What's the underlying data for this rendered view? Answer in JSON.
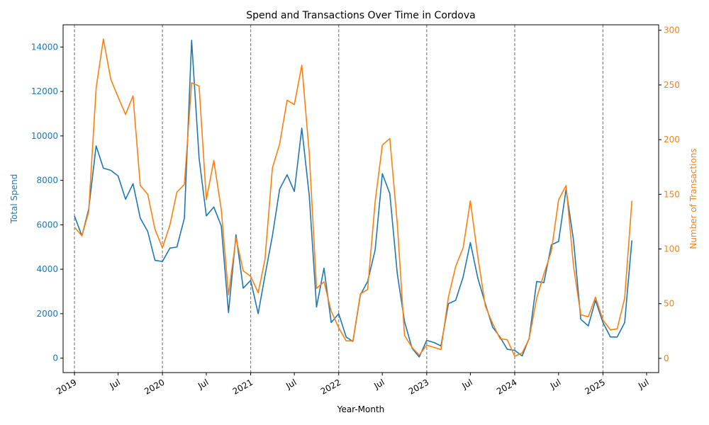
{
  "chart_data": {
    "type": "line",
    "title": "Spend and Transactions Over Time in Cordova",
    "xlabel": "Year-Month",
    "ylabel_left": "Total Spend",
    "ylabel_right": "Number of Transactions",
    "colors": {
      "spend": "#1f77b4",
      "transactions": "#ff7f0e",
      "year_line": "#808080"
    },
    "xlim": [
      "2018-11-15",
      "2025-08-20"
    ],
    "ylim_left": [
      -650,
      15000
    ],
    "ylim_right": [
      -13,
      305
    ],
    "y_ticks_left": [
      "0",
      "2000",
      "4000",
      "6000",
      "8000",
      "10000",
      "12000",
      "14000"
    ],
    "y_ticks_right": [
      "0",
      "50",
      "100",
      "150",
      "200",
      "250",
      "300"
    ],
    "x_ticks": [
      {
        "date": "2019-01-01",
        "label": "2019"
      },
      {
        "date": "2019-07-01",
        "label": "Jul"
      },
      {
        "date": "2020-01-01",
        "label": "2020"
      },
      {
        "date": "2020-07-01",
        "label": "Jul"
      },
      {
        "date": "2021-01-01",
        "label": "2021"
      },
      {
        "date": "2021-07-01",
        "label": "Jul"
      },
      {
        "date": "2022-01-01",
        "label": "2022"
      },
      {
        "date": "2022-07-01",
        "label": "Jul"
      },
      {
        "date": "2023-01-01",
        "label": "2023"
      },
      {
        "date": "2023-07-01",
        "label": "Jul"
      },
      {
        "date": "2024-01-01",
        "label": "2024"
      },
      {
        "date": "2024-07-01",
        "label": "Jul"
      },
      {
        "date": "2025-01-01",
        "label": "2025"
      },
      {
        "date": "2025-07-01",
        "label": "Jul"
      }
    ],
    "year_lines": [
      "2019-01-01",
      "2020-01-01",
      "2021-01-01",
      "2022-01-01",
      "2023-01-01",
      "2024-01-01",
      "2025-01-01"
    ],
    "x": [
      "2019-01",
      "2019-02",
      "2019-03",
      "2019-04",
      "2019-05",
      "2019-06",
      "2019-07",
      "2019-08",
      "2019-09",
      "2019-10",
      "2019-11",
      "2019-12",
      "2020-01",
      "2020-02",
      "2020-03",
      "2020-04",
      "2020-05",
      "2020-06",
      "2020-07",
      "2020-08",
      "2020-09",
      "2020-10",
      "2020-11",
      "2020-12",
      "2021-01",
      "2021-02",
      "2021-03",
      "2021-04",
      "2021-05",
      "2021-06",
      "2021-07",
      "2021-08",
      "2021-09",
      "2021-10",
      "2021-11",
      "2021-12",
      "2022-01",
      "2022-02",
      "2022-03",
      "2022-04",
      "2022-05",
      "2022-06",
      "2022-07",
      "2022-08",
      "2022-09",
      "2022-10",
      "2022-11",
      "2022-12",
      "2023-01",
      "2023-02",
      "2023-03",
      "2023-04",
      "2023-05",
      "2023-06",
      "2023-07",
      "2023-08",
      "2023-09",
      "2023-10",
      "2023-11",
      "2023-12",
      "2024-01",
      "2024-02",
      "2024-03",
      "2024-04",
      "2024-05",
      "2024-06",
      "2024-07",
      "2024-08",
      "2024-09",
      "2024-10",
      "2024-11",
      "2024-12",
      "2025-01",
      "2025-02",
      "2025-03",
      "2025-04",
      "2025-05"
    ],
    "series": [
      {
        "name": "Total Spend",
        "axis": "left",
        "values": [
          6400,
          5500,
          6700,
          9550,
          8550,
          8450,
          8200,
          7150,
          7850,
          6300,
          5700,
          4400,
          4350,
          4950,
          5000,
          6300,
          14300,
          9000,
          6400,
          6800,
          5950,
          2050,
          5550,
          3150,
          3500,
          2000,
          3700,
          5500,
          7600,
          8250,
          7500,
          10350,
          7300,
          2300,
          4050,
          1600,
          2000,
          950,
          750,
          2850,
          3450,
          4850,
          8300,
          7400,
          3800,
          1650,
          450,
          50,
          800,
          700,
          550,
          2450,
          2600,
          3650,
          5200,
          3600,
          2450,
          1400,
          950,
          400,
          350,
          100,
          900,
          3450,
          3400,
          5100,
          5250,
          7600,
          5300,
          1750,
          1450,
          2600,
          1600,
          950,
          950,
          1600,
          5300
        ]
      },
      {
        "name": "Number of Transactions",
        "axis": "right",
        "values": [
          120,
          112,
          134,
          247,
          292,
          255,
          239,
          223,
          240,
          158,
          150,
          118,
          101,
          122,
          152,
          159,
          252,
          249,
          145,
          181,
          136,
          58,
          110,
          80,
          75,
          60,
          90,
          174,
          196,
          236,
          232,
          268,
          187,
          64,
          70,
          43,
          28,
          16,
          16,
          59,
          63,
          143,
          195,
          201,
          123,
          21,
          10,
          3,
          12,
          10,
          8,
          56,
          84,
          101,
          144,
          93,
          48,
          32,
          18,
          17,
          2,
          5,
          18,
          55,
          77,
          98,
          145,
          158,
          84,
          40,
          38,
          56,
          35,
          26,
          27,
          55,
          144
        ]
      }
    ]
  }
}
